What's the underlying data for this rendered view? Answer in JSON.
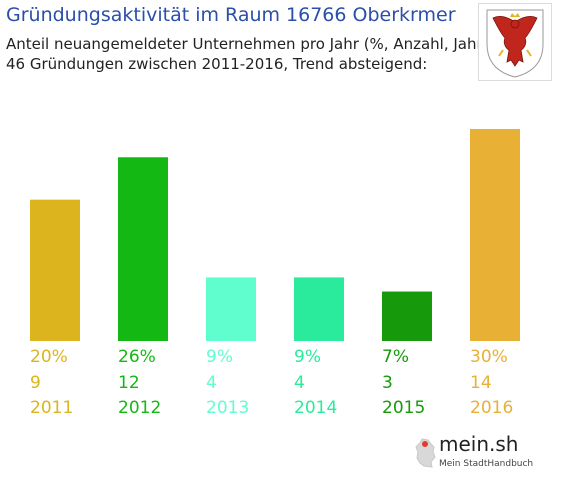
{
  "title": "Gründungsaktivität im Raum 16766 Oberkrmer",
  "subtitle_1": "Anteil neuangemeldeter Unternehmen pro Jahr (%, Anzahl, Jahr)",
  "subtitle_2": "46 Gründungen zwischen 2011-2016, Trend absteigend:",
  "logo": {
    "name": "mein.sh",
    "tagline": "Mein StadtHandbuch"
  },
  "crest_icon": "brandenburg-eagle-crest-icon",
  "chart_data": {
    "type": "bar",
    "title": "Gründungsaktivität im Raum 16766 Oberkrmer",
    "categories": [
      "2011",
      "2012",
      "2013",
      "2014",
      "2015",
      "2016"
    ],
    "series": [
      {
        "values": [
          20,
          26,
          9,
          9,
          7,
          30
        ]
      }
    ],
    "percent_labels": [
      "20%",
      "26%",
      "9%",
      "9%",
      "7%",
      "30%"
    ],
    "counts": [
      "9",
      "12",
      "4",
      "4",
      "3",
      "14"
    ],
    "colors": [
      "#dcb41d",
      "#13b813",
      "#60fdcf",
      "#2aeb9c",
      "#169a0b",
      "#e8b035"
    ],
    "ylim": [
      0,
      30
    ],
    "grid": false,
    "legend": "none"
  }
}
